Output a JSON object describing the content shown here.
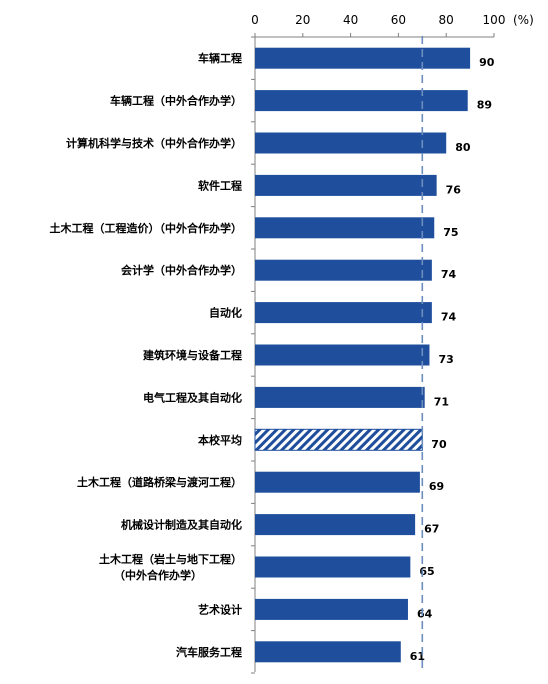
{
  "chart_data": {
    "type": "bar",
    "orientation": "horizontal",
    "unit_label": "(%)",
    "xlim": [
      0,
      100
    ],
    "ticks": [
      "0",
      "20",
      "40",
      "60",
      "80",
      "100"
    ],
    "tick_values": [
      0,
      20,
      40,
      60,
      80,
      100
    ],
    "reference_line": 70,
    "bar_color": "#1F4E9C",
    "highlight_index": 9,
    "categories": [
      [
        "车辆工程"
      ],
      [
        "车辆工程（中外合作办学）"
      ],
      [
        "计算机科学与技术（中外合作办学）"
      ],
      [
        "软件工程"
      ],
      [
        "土木工程（工程造价）（中外合作办学）"
      ],
      [
        "会计学（中外合作办学）"
      ],
      [
        "自动化"
      ],
      [
        "建筑环境与设备工程"
      ],
      [
        "电气工程及其自动化"
      ],
      [
        "本校平均"
      ],
      [
        "土木工程（道路桥梁与渡河工程）"
      ],
      [
        "机械设计制造及其自动化"
      ],
      [
        "土木工程（岩土与地下工程）",
        "（中外合作办学）"
      ],
      [
        "艺术设计"
      ],
      [
        "汽车服务工程"
      ]
    ],
    "values": [
      90,
      89,
      80,
      76,
      75,
      74,
      74,
      73,
      71,
      70,
      69,
      67,
      65,
      64,
      61
    ]
  }
}
